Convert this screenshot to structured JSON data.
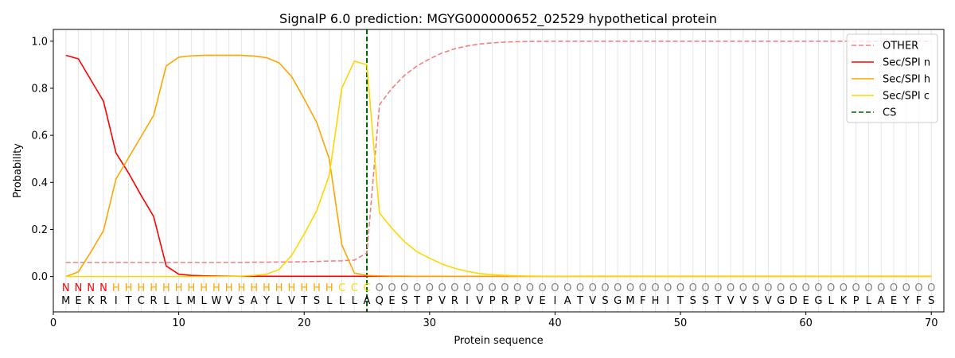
{
  "chart_data": {
    "type": "line",
    "title": "SignalP 6.0 prediction: MGYG000000652_02529 hypothetical protein",
    "xlabel": "Protein sequence",
    "ylabel": "Probability",
    "xlim": [
      0,
      71
    ],
    "ylim": [
      -0.15,
      1.05
    ],
    "xticks": [
      0,
      10,
      20,
      30,
      40,
      50,
      60,
      70
    ],
    "yticks": [
      0.0,
      0.2,
      0.4,
      0.6,
      0.8,
      1.0
    ],
    "grid": "vertical lines at each residue",
    "legend_position": "top-right",
    "colors": {
      "OTHER": "#f08080",
      "Sec/SPI n": "#ff0000",
      "Sec/SPI h": "#ffa500",
      "Sec/SPI c": "#ffd700",
      "CS": "#006400",
      "label_N": "#ff0000",
      "label_H": "#ffa500",
      "label_C": "#ffd700",
      "label_O": "#808080"
    },
    "sequence": [
      "M",
      "E",
      "K",
      "R",
      "I",
      "T",
      "C",
      "R",
      "L",
      "L",
      "M",
      "L",
      "W",
      "V",
      "S",
      "A",
      "Y",
      "L",
      "V",
      "T",
      "S",
      "L",
      "L",
      "L",
      "A",
      "Q",
      "E",
      "S",
      "T",
      "P",
      "V",
      "R",
      "I",
      "V",
      "P",
      "R",
      "P",
      "V",
      "E",
      "I",
      "A",
      "T",
      "V",
      "S",
      "G",
      "M",
      "F",
      "H",
      "I",
      "T",
      "S",
      "S",
      "T",
      "V",
      "V",
      "S",
      "V",
      "G",
      "D",
      "E",
      "G",
      "L",
      "K",
      "P",
      "L",
      "A",
      "E",
      "Y",
      "F",
      "S"
    ],
    "region_labels": [
      "N",
      "N",
      "N",
      "N",
      "H",
      "H",
      "H",
      "H",
      "H",
      "H",
      "H",
      "H",
      "H",
      "H",
      "H",
      "H",
      "H",
      "H",
      "H",
      "H",
      "H",
      "H",
      "C",
      "C",
      "C",
      "O",
      "O",
      "O",
      "O",
      "O",
      "O",
      "O",
      "O",
      "O",
      "O",
      "O",
      "O",
      "O",
      "O",
      "O",
      "O",
      "O",
      "O",
      "O",
      "O",
      "O",
      "O",
      "O",
      "O",
      "O",
      "O",
      "O",
      "O",
      "O",
      "O",
      "O",
      "O",
      "O",
      "O",
      "O",
      "O",
      "O",
      "O",
      "O",
      "O",
      "O",
      "O",
      "O",
      "O",
      "O"
    ],
    "cleavage_site": 25,
    "series": [
      {
        "name": "OTHER",
        "style": "dashed",
        "values": [
          0.06,
          0.06,
          0.06,
          0.06,
          0.06,
          0.06,
          0.06,
          0.06,
          0.06,
          0.06,
          0.06,
          0.06,
          0.06,
          0.06,
          0.06,
          0.061,
          0.061,
          0.062,
          0.062,
          0.063,
          0.064,
          0.066,
          0.067,
          0.07,
          0.1,
          0.73,
          0.8,
          0.855,
          0.895,
          0.925,
          0.95,
          0.968,
          0.98,
          0.988,
          0.993,
          0.996,
          0.998,
          0.999,
          0.999,
          1.0,
          1.0,
          1.0,
          1.0,
          1.0,
          1.0,
          1.0,
          1.0,
          1.0,
          1.0,
          1.0,
          1.0,
          1.0,
          1.0,
          1.0,
          1.0,
          1.0,
          1.0,
          1.0,
          1.0,
          1.0,
          1.0,
          1.0,
          1.0,
          1.0,
          1.0,
          1.0,
          1.0,
          1.0,
          1.0,
          1.0
        ]
      },
      {
        "name": "Sec/SPI n",
        "style": "solid",
        "values": [
          0.94,
          0.925,
          0.835,
          0.745,
          0.525,
          0.44,
          0.345,
          0.255,
          0.045,
          0.01,
          0.005,
          0.003,
          0.002,
          0.002,
          0.001,
          0.001,
          0.001,
          0.001,
          0.001,
          0.001,
          0.001,
          0.001,
          0.001,
          0.001,
          0.001,
          0.001,
          0.001,
          0.001,
          0.001,
          0.001,
          0.001,
          0.001,
          0.001,
          0.001,
          0.001,
          0.001,
          0.001,
          0.001,
          0.001,
          0.001,
          0.001,
          0.001,
          0.001,
          0.001,
          0.001,
          0.001,
          0.001,
          0.001,
          0.001,
          0.001,
          0.001,
          0.001,
          0.001,
          0.001,
          0.001,
          0.001,
          0.001,
          0.001,
          0.001,
          0.001,
          0.001,
          0.001,
          0.001,
          0.001,
          0.001,
          0.001,
          0.001,
          0.001,
          0.001,
          0.001
        ]
      },
      {
        "name": "Sec/SPI h",
        "style": "solid",
        "values": [
          0.0,
          0.02,
          0.105,
          0.195,
          0.415,
          0.505,
          0.595,
          0.685,
          0.895,
          0.932,
          0.938,
          0.94,
          0.94,
          0.94,
          0.94,
          0.937,
          0.93,
          0.908,
          0.85,
          0.755,
          0.655,
          0.5,
          0.135,
          0.015,
          0.005,
          0.003,
          0.002,
          0.002,
          0.001,
          0.001,
          0.001,
          0.001,
          0.001,
          0.001,
          0.001,
          0.001,
          0.001,
          0.001,
          0.001,
          0.001,
          0.001,
          0.001,
          0.001,
          0.001,
          0.001,
          0.001,
          0.001,
          0.001,
          0.001,
          0.001,
          0.001,
          0.001,
          0.001,
          0.001,
          0.001,
          0.001,
          0.001,
          0.001,
          0.001,
          0.001,
          0.001,
          0.001,
          0.001,
          0.001,
          0.001,
          0.001,
          0.001,
          0.001,
          0.001,
          0.001
        ]
      },
      {
        "name": "Sec/SPI c",
        "style": "solid",
        "values": [
          0.0,
          0.0,
          0.0,
          0.0,
          0.0,
          0.0,
          0.0,
          0.0,
          0.0,
          0.0,
          0.0,
          0.0,
          0.0,
          0.001,
          0.002,
          0.005,
          0.01,
          0.03,
          0.09,
          0.18,
          0.28,
          0.43,
          0.8,
          0.915,
          0.9,
          0.27,
          0.205,
          0.148,
          0.105,
          0.078,
          0.053,
          0.035,
          0.022,
          0.013,
          0.008,
          0.005,
          0.003,
          0.002,
          0.001,
          0.001,
          0.001,
          0.0,
          0.0,
          0.0,
          0.0,
          0.0,
          0.0,
          0.0,
          0.0,
          0.0,
          0.0,
          0.0,
          0.0,
          0.0,
          0.0,
          0.0,
          0.0,
          0.0,
          0.0,
          0.0,
          0.0,
          0.0,
          0.0,
          0.0,
          0.0,
          0.0,
          0.0,
          0.0,
          0.0,
          0.0
        ]
      }
    ],
    "legend": [
      "OTHER",
      "Sec/SPI n",
      "Sec/SPI h",
      "Sec/SPI c",
      "CS"
    ]
  }
}
